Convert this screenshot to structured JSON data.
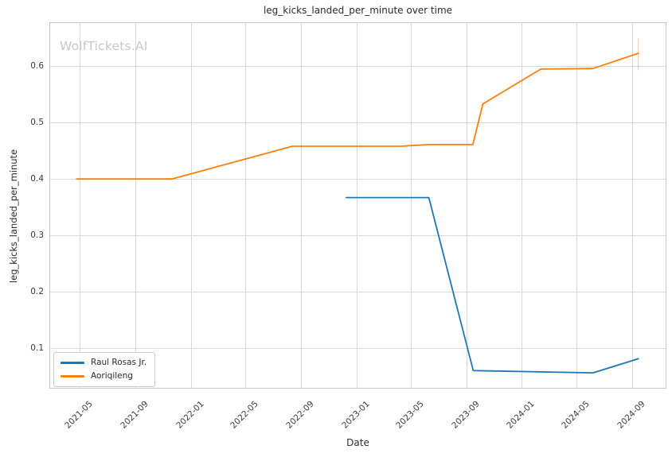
{
  "chart_data": {
    "type": "line",
    "title": "leg_kicks_landed_per_minute over time",
    "xlabel": "Date",
    "ylabel": "leg_kicks_landed_per_minute",
    "watermark": "WolfTickets.AI",
    "grid": true,
    "legend_position": "lower left",
    "x_ticks": [
      "2021-05",
      "2021-09",
      "2022-01",
      "2022-05",
      "2022-09",
      "2023-01",
      "2023-05",
      "2023-09",
      "2024-01",
      "2024-05",
      "2024-09"
    ],
    "y_ticks": [
      0.1,
      0.2,
      0.3,
      0.4,
      0.5,
      0.6
    ],
    "xlim": [
      "2021-02-23",
      "2024-11-15"
    ],
    "ylim": [
      0.028,
      0.678
    ],
    "series": [
      {
        "name": "Raul Rosas Jr.",
        "color": "#1f77b4",
        "points": [
          {
            "date": "2022-12-10",
            "value": 0.367
          },
          {
            "date": "2023-06-10",
            "value": 0.367
          },
          {
            "date": "2023-09-16",
            "value": 0.06
          },
          {
            "date": "2024-06-06",
            "value": 0.056
          },
          {
            "date": "2024-09-14",
            "value": 0.081
          }
        ]
      },
      {
        "name": "Aoriqileng",
        "color": "#ff7f0e",
        "points": [
          {
            "date": "2021-04-24",
            "value": 0.4
          },
          {
            "date": "2021-11-20",
            "value": 0.4
          },
          {
            "date": "2022-08-13",
            "value": 0.458
          },
          {
            "date": "2023-04-08",
            "value": 0.458
          },
          {
            "date": "2023-06-10",
            "value": 0.461
          },
          {
            "date": "2023-09-15",
            "value": 0.461
          },
          {
            "date": "2023-10-07",
            "value": 0.533
          },
          {
            "date": "2024-02-12",
            "value": 0.595
          },
          {
            "date": "2024-06-06",
            "value": 0.596
          },
          {
            "date": "2024-09-14",
            "value": 0.623
          }
        ],
        "end_error_bar": {
          "date": "2024-09-14",
          "low": 0.593,
          "high": 0.649
        }
      }
    ],
    "style": {
      "grid_color": "#d9d9d9",
      "spine_color": "#c7c7c7",
      "text_color": "#2b2b2b",
      "tick_color": "#3a3a3a",
      "watermark_color": "#c9c9c9",
      "background": "#ffffff"
    }
  }
}
